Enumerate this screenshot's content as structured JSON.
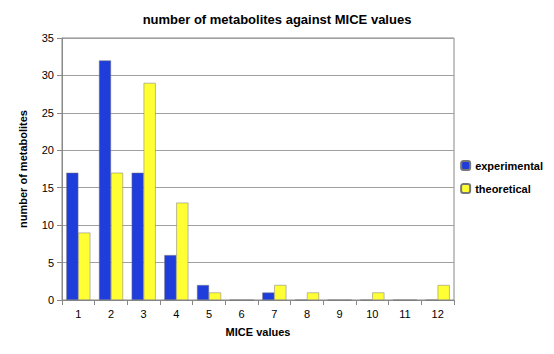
{
  "chart_data": {
    "type": "bar",
    "title": "number of metabolites against MICE values",
    "x_label": "MICE values",
    "y_label": "number of metabolites",
    "categories": [
      "1",
      "2",
      "3",
      "4",
      "5",
      "6",
      "7",
      "8",
      "9",
      "10",
      "11",
      "12"
    ],
    "series": [
      {
        "name": "experimental",
        "color": "#1f3ddb",
        "values": [
          17,
          32,
          17,
          6,
          2,
          0,
          1,
          0,
          0,
          0,
          0,
          0
        ]
      },
      {
        "name": "theoretical",
        "color": "#ffff33",
        "values": [
          9,
          17,
          29,
          13,
          1,
          0,
          2,
          1,
          0,
          1,
          0,
          2
        ]
      }
    ],
    "ylim": [
      0,
      35
    ],
    "yticks": [
      0,
      5,
      10,
      15,
      20,
      25,
      30,
      35
    ],
    "grid": true,
    "legend": "right"
  }
}
